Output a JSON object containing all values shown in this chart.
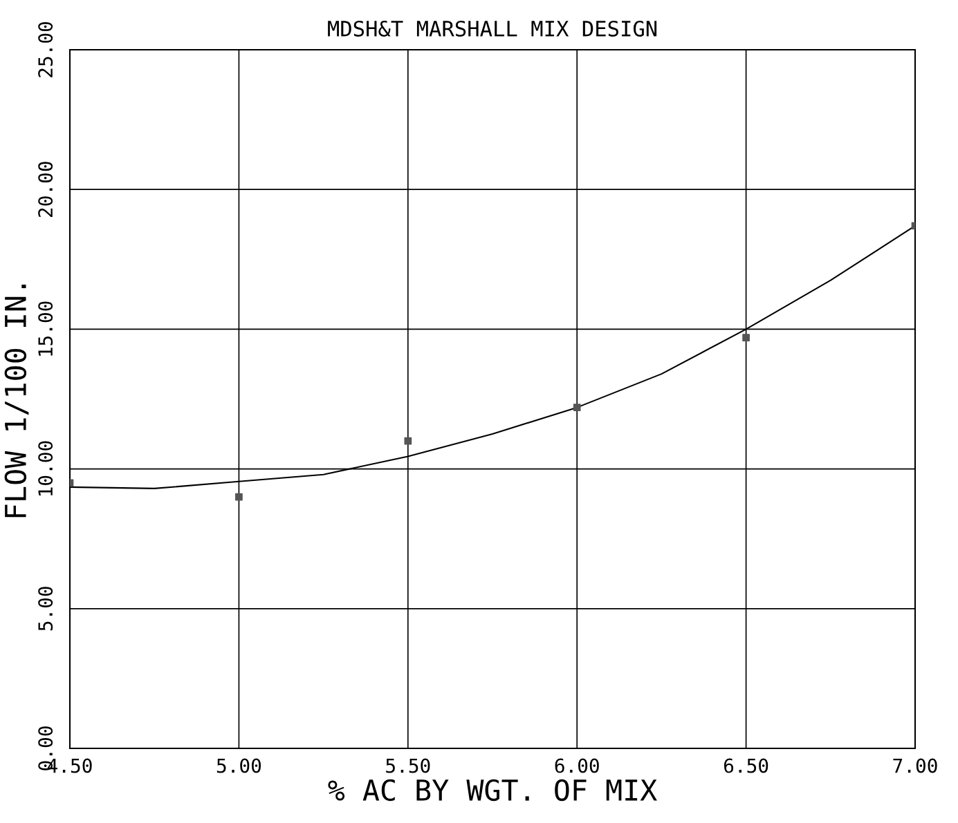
{
  "chart_data": {
    "type": "scatter",
    "title": "MDSH&T MARSHALL MIX DESIGN",
    "xlabel": "% AC BY WGT. OF MIX",
    "ylabel": "FLOW 1/100 IN.",
    "xlim": [
      4.5,
      7.0
    ],
    "ylim": [
      0,
      25
    ],
    "xticks": [
      {
        "value": 4.5,
        "label": "4.50"
      },
      {
        "value": 5.0,
        "label": "5.00"
      },
      {
        "value": 5.5,
        "label": "5.50"
      },
      {
        "value": 6.0,
        "label": "6.00"
      },
      {
        "value": 6.5,
        "label": "6.50"
      },
      {
        "value": 7.0,
        "label": "7.00"
      }
    ],
    "yticks": [
      {
        "value": 0,
        "label": "0.00"
      },
      {
        "value": 5,
        "label": "5.00"
      },
      {
        "value": 10,
        "label": "10.00"
      },
      {
        "value": 15,
        "label": "15.00"
      },
      {
        "value": 20,
        "label": "20.00"
      },
      {
        "value": 25,
        "label": "25.00"
      }
    ],
    "grid": true,
    "series": [
      {
        "marker": "square",
        "color": "#555555",
        "x": [
          4.5,
          5.0,
          5.5,
          6.0,
          6.5,
          7.0
        ],
        "values": [
          9.5,
          9.0,
          11.0,
          12.2,
          14.7,
          18.7
        ]
      },
      {
        "type": "line",
        "marker": "none",
        "color": "#000000",
        "x": [
          4.5,
          4.75,
          5.0,
          5.25,
          5.5,
          5.75,
          6.0,
          6.25,
          6.5,
          6.75,
          7.0
        ],
        "values": [
          9.35,
          9.3,
          9.55,
          9.8,
          10.45,
          11.25,
          12.2,
          13.4,
          15.0,
          16.75,
          18.7
        ]
      }
    ]
  }
}
